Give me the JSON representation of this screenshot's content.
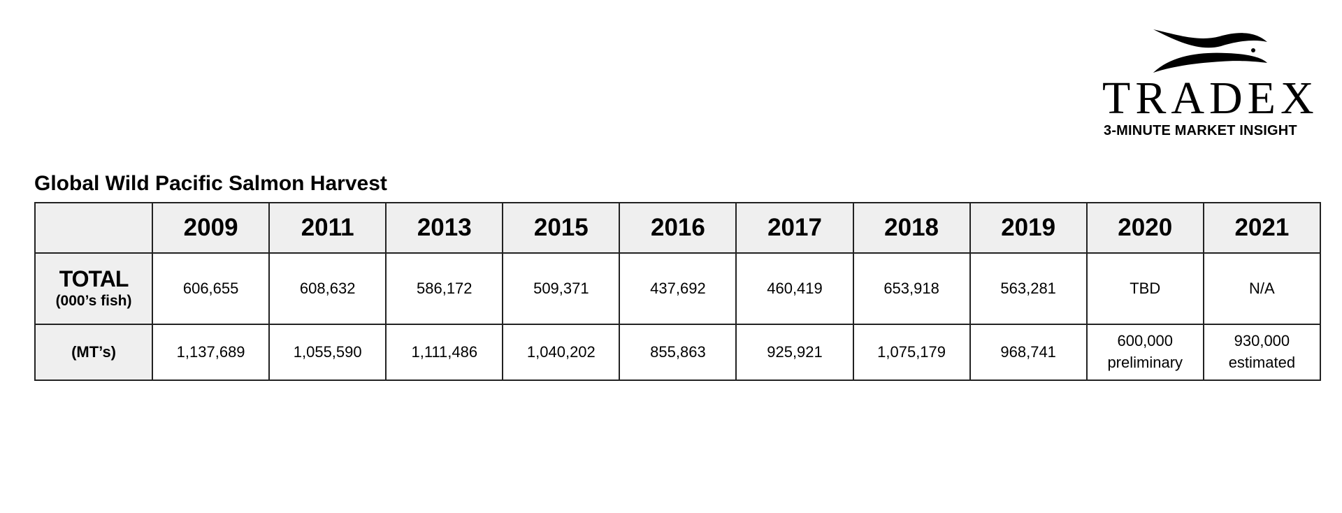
{
  "logo": {
    "name": "TRADEX",
    "tagline": "3-MINUTE MARKET INSIGHT"
  },
  "chart_data": {
    "type": "table",
    "title": "Global Wild Pacific Salmon Harvest",
    "columns": [
      "2009",
      "2011",
      "2013",
      "2015",
      "2016",
      "2017",
      "2018",
      "2019",
      "2020",
      "2021"
    ],
    "rows": [
      {
        "label": "TOTAL",
        "sublabel": "(000’s fish)",
        "values": [
          "606,655",
          "608,632",
          "586,172",
          "509,371",
          "437,692",
          "460,419",
          "653,918",
          "563,281",
          "TBD",
          "N/A"
        ],
        "notes": [
          "",
          "",
          "",
          "",
          "",
          "",
          "",
          "",
          "",
          ""
        ]
      },
      {
        "label": "(MT’s)",
        "values": [
          "1,137,689",
          "1,055,590",
          "1,111,486",
          "1,040,202",
          "855,863",
          "925,921",
          "1,075,179",
          "968,741",
          "600,000",
          "930,000"
        ],
        "notes": [
          "",
          "",
          "",
          "",
          "",
          "",
          "",
          "",
          "preliminary",
          "estimated"
        ]
      }
    ]
  }
}
